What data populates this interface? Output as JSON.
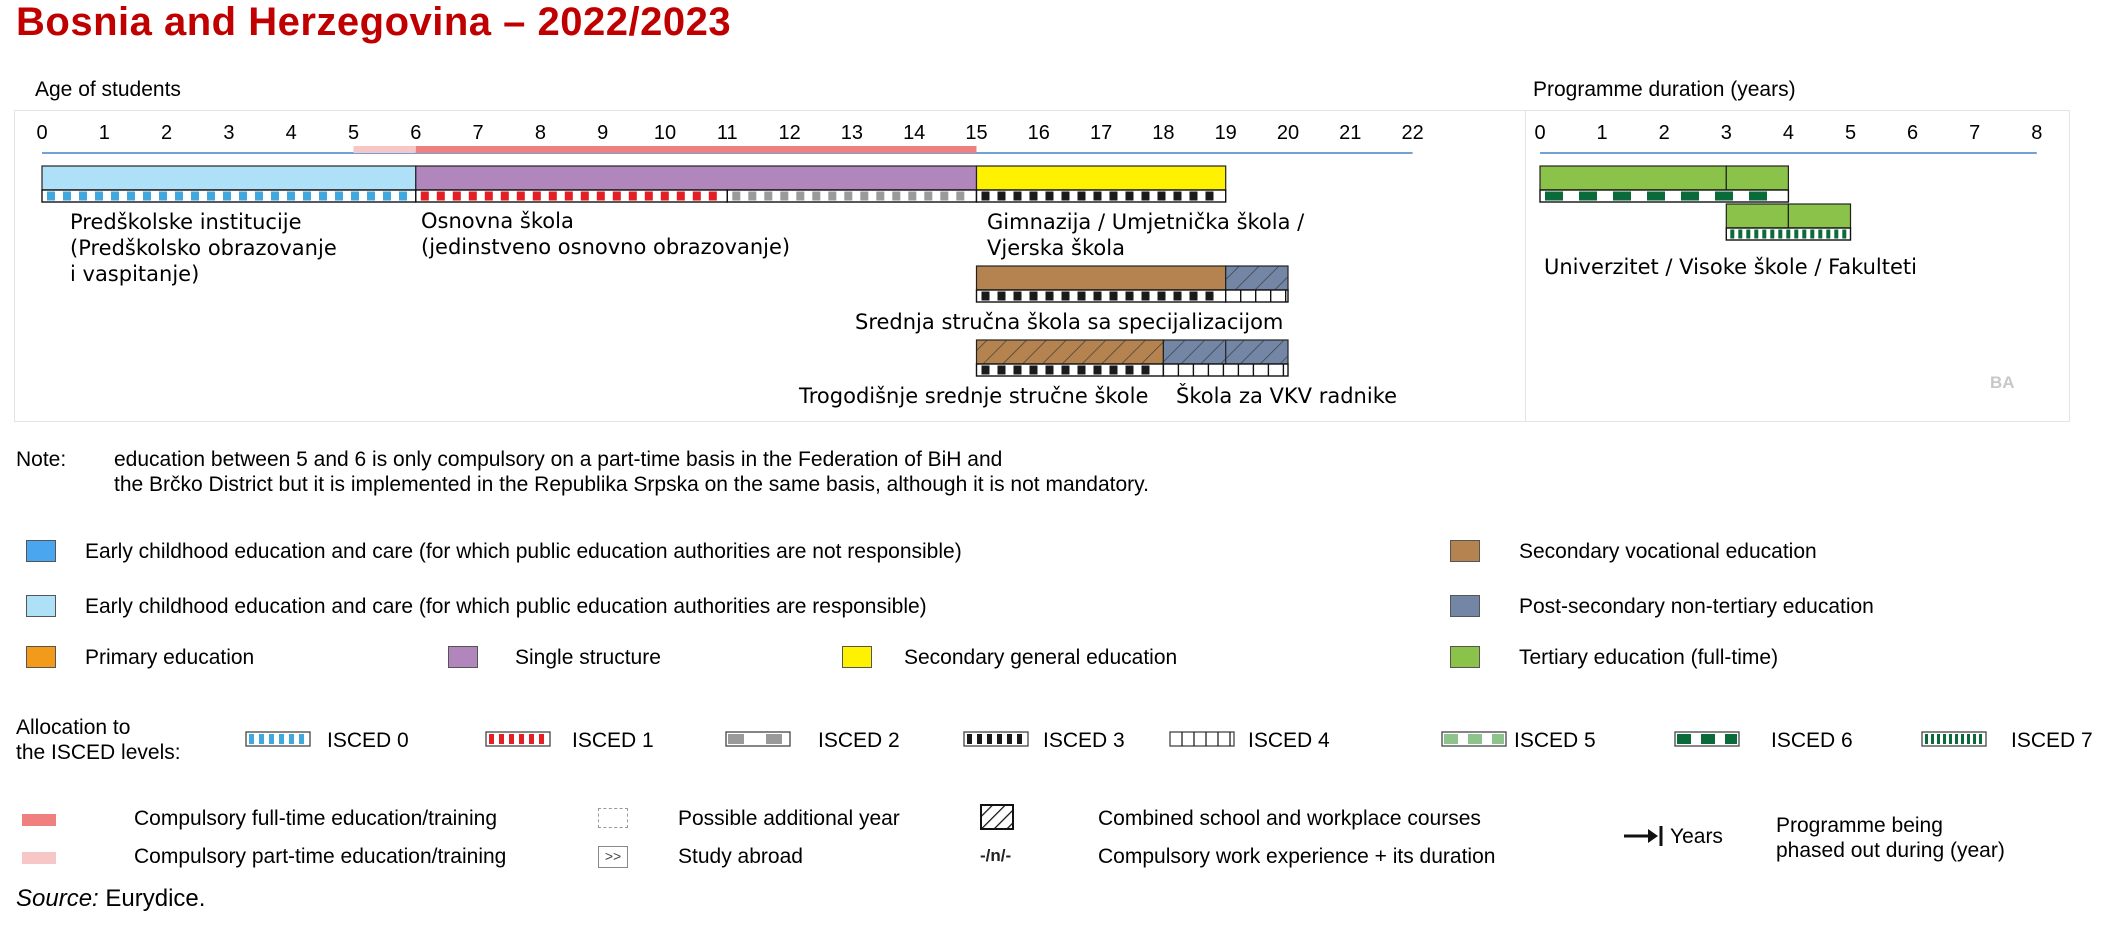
{
  "title": "Bosnia and Herzegovina – 2022/2023",
  "age_axis": {
    "label": "Age of students",
    "ticks": [
      "0",
      "1",
      "2",
      "3",
      "4",
      "5",
      "6",
      "7",
      "8",
      "9",
      "10",
      "11",
      "12",
      "13",
      "14",
      "15",
      "16",
      "17",
      "18",
      "19",
      "20",
      "21",
      "22"
    ]
  },
  "duration_axis": {
    "label": "Programme duration (years)",
    "ticks": [
      "0",
      "1",
      "2",
      "3",
      "4",
      "5",
      "6",
      "7",
      "8"
    ]
  },
  "compulsory": {
    "part_time": {
      "from": 5,
      "to": 6
    },
    "full_time": {
      "from": 6,
      "to": 15
    }
  },
  "programmes": [
    {
      "name": "Predškolske institucije\n(Predškolsko obrazovanje\ni vaspitanje)",
      "from": 0,
      "to": 6,
      "category": "ecec_responsible",
      "isced": [
        {
          "level": "isced0",
          "from": 0,
          "to": 6
        }
      ]
    },
    {
      "name": "Osnovna škola\n(jedinstveno osnovno obrazovanje)",
      "from": 6,
      "to": 15,
      "category": "single_structure",
      "isced": [
        {
          "level": "isced1",
          "from": 6,
          "to": 11
        },
        {
          "level": "isced2",
          "from": 11,
          "to": 15
        }
      ]
    },
    {
      "name": "Gimnazija / Umjetnička škola /\nVjerska škola",
      "from": 15,
      "to": 19,
      "category": "secondary_general",
      "isced": [
        {
          "level": "isced3",
          "from": 15,
          "to": 19
        }
      ]
    },
    {
      "name": "Srednja stručna škola sa specijalizacijom",
      "from": 15,
      "to": 20,
      "category": "mixed",
      "segments": [
        {
          "category": "secondary_vocational",
          "from": 15,
          "to": 19
        },
        {
          "category": "post_secondary",
          "from": 19,
          "to": 20,
          "hatched": true
        }
      ],
      "isced": [
        {
          "level": "isced3",
          "from": 15,
          "to": 19
        },
        {
          "level": "isced4",
          "from": 19,
          "to": 20
        }
      ]
    },
    {
      "name": "Trogodišnje srednje stručne škole",
      "second_name": "Škola za VKV radnike",
      "from": 15,
      "to": 20,
      "category": "mixed",
      "segments": [
        {
          "category": "secondary_vocational",
          "from": 15,
          "to": 18,
          "hatched": true
        },
        {
          "category": "post_secondary",
          "from": 18,
          "to": 20,
          "hatched": true
        }
      ],
      "isced": [
        {
          "level": "isced3",
          "from": 15,
          "to": 18
        },
        {
          "level": "isced4",
          "from": 18,
          "to": 20
        }
      ]
    }
  ],
  "tertiary": {
    "name": "Univerzitet / Visoke škole / Fakulteti",
    "bars": [
      {
        "from": 0,
        "to": 3,
        "extra_to": 4,
        "isced": "isced6"
      },
      {
        "from": 3,
        "to": 5,
        "isced": "isced7"
      }
    ]
  },
  "country_code": "BA",
  "note": {
    "label": "Note:",
    "line1": "education between 5 and 6 is only compulsory on a part-time basis in the Federation of BiH and",
    "line2": "the Brčko District but it is implemented in the Republika Srpska on the same basis, although it is not mandatory."
  },
  "legend": {
    "ecec_not_resp": {
      "label": "Early childhood education and care (for which public education authorities are not responsible)",
      "color": "#4aa6ee"
    },
    "ecec_resp": {
      "label": "Early childhood education and care (for which public education authorities are responsible)",
      "color": "#aee0f8"
    },
    "primary": {
      "label": "Primary education",
      "color": "#f49a1a"
    },
    "single": {
      "label": "Single structure",
      "color": "#b186bd"
    },
    "secondary_general": {
      "label": "Secondary general education",
      "color": "#fff200"
    },
    "secondary_vocational": {
      "label": "Secondary vocational education",
      "color": "#b5834f"
    },
    "post_secondary": {
      "label": "Post-secondary non-tertiary education",
      "color": "#7486a6"
    },
    "tertiary": {
      "label": "Tertiary education (full-time)",
      "color": "#8bc34a"
    }
  },
  "isced_legend": {
    "title_line1": "Allocation to",
    "title_line2": "the ISCED levels:",
    "items": [
      {
        "label": "ISCED 0",
        "color": "#3fa9dd"
      },
      {
        "label": "ISCED 1",
        "color": "#e31e24"
      },
      {
        "label": "ISCED 2",
        "color": "#9a9a9a"
      },
      {
        "label": "ISCED 3",
        "color": "#1a1a1a"
      },
      {
        "label": "ISCED 4",
        "color": "#ffffff"
      },
      {
        "label": "ISCED 5",
        "color": "#8cc48c"
      },
      {
        "label": "ISCED 6",
        "color": "#0a6a3a"
      },
      {
        "label": "ISCED 7",
        "color": "#0a6a3a"
      }
    ]
  },
  "symbols": {
    "compulsory_full": "Compulsory full-time education/training",
    "compulsory_part": "Compulsory part-time education/training",
    "additional_year": "Possible additional year",
    "study_abroad": "Study abroad",
    "study_abroad_glyph": ">>",
    "combined": "Combined school and workplace courses",
    "work_experience": "Compulsory work experience + its duration",
    "work_experience_glyph": "-/n/-",
    "years": "Years",
    "phased_out_line1": "Programme being",
    "phased_out_line2": "phased out during (year)"
  },
  "source": {
    "label": "Source:",
    "text": "Eurydice."
  },
  "colors": {
    "title": "#c00000",
    "compulsory_full": "#f08080",
    "compulsory_part": "#f7c6c6",
    "axis_line": "#6fa3d8"
  }
}
